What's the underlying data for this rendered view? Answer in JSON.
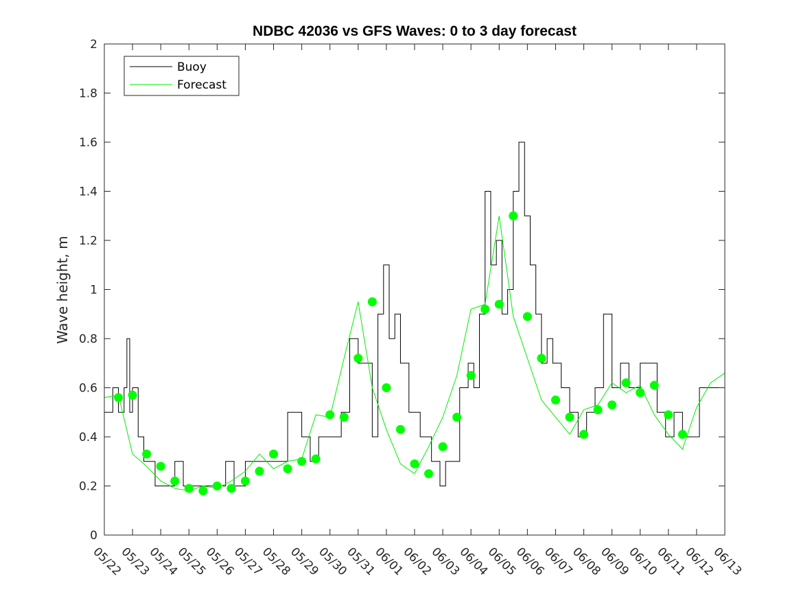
{
  "chart_data": {
    "type": "line",
    "title": "NDBC 42036 vs GFS Waves: 0 to 3 day forecast",
    "xlabel": "",
    "ylabel": "Wave height, m",
    "ylim": [
      0,
      2
    ],
    "yticks": [
      0,
      0.2,
      0.4,
      0.6,
      0.8,
      1,
      1.2,
      1.4,
      1.6,
      1.8,
      2
    ],
    "ytick_labels": [
      "0",
      "0.2",
      "0.4",
      "0.6",
      "0.8",
      "1",
      "1.2",
      "1.4",
      "1.6",
      "1.8",
      "2"
    ],
    "xlim_days": [
      0,
      22
    ],
    "xtick_labels": [
      "05/22",
      "05/23",
      "05/24",
      "05/25",
      "05/26",
      "05/27",
      "05/28",
      "05/29",
      "05/30",
      "05/31",
      "06/01",
      "06/02",
      "06/03",
      "06/04",
      "06/05",
      "06/06",
      "06/07",
      "06/08",
      "06/09",
      "06/10",
      "06/11",
      "06/12",
      "06/13"
    ],
    "grid": false,
    "legend_position": "top-left",
    "colors": {
      "buoy": "#000000",
      "forecast": "#00ee00",
      "marker": "#00ff00"
    },
    "legend": [
      {
        "label": "Buoy",
        "color": "#000000"
      },
      {
        "label": "Forecast",
        "color": "#00ee00"
      }
    ],
    "series": [
      {
        "name": "Buoy",
        "x": [
          0,
          0.3,
          0.5,
          0.7,
          0.8,
          0.9,
          1.0,
          1.2,
          1.4,
          1.6,
          1.8,
          2.0,
          2.5,
          2.8,
          3.2,
          3.6,
          4.0,
          4.3,
          4.6,
          5.0,
          5.5,
          6.0,
          6.5,
          7.0,
          7.3,
          7.6,
          8.0,
          8.4,
          8.7,
          9.0,
          9.3,
          9.5,
          9.7,
          9.9,
          10.1,
          10.3,
          10.5,
          10.8,
          11.2,
          11.6,
          11.9,
          12.1,
          12.3,
          12.6,
          12.9,
          13.1,
          13.3,
          13.5,
          13.7,
          13.9,
          14.1,
          14.3,
          14.5,
          14.7,
          14.9,
          15.1,
          15.3,
          15.5,
          15.7,
          15.9,
          16.2,
          16.5,
          16.8,
          17.1,
          17.4,
          17.7,
          18.0,
          18.3,
          18.6,
          19.0,
          19.3,
          19.6,
          19.9,
          20.2,
          20.5,
          20.8,
          21.1,
          21.4,
          21.6,
          21.8
        ],
        "values": [
          0.5,
          0.6,
          0.5,
          0.6,
          0.8,
          0.5,
          0.6,
          0.4,
          0.3,
          0.3,
          0.2,
          0.2,
          0.3,
          0.2,
          0.2,
          0.2,
          0.2,
          0.3,
          0.2,
          0.3,
          0.3,
          0.3,
          0.5,
          0.4,
          0.3,
          0.4,
          0.4,
          0.5,
          0.8,
          0.7,
          0.7,
          0.4,
          0.9,
          1.1,
          0.8,
          0.9,
          0.7,
          0.5,
          0.4,
          0.3,
          0.2,
          0.3,
          0.3,
          0.6,
          0.7,
          0.6,
          0.9,
          1.4,
          1.1,
          1.2,
          0.9,
          1.0,
          1.4,
          1.6,
          1.3,
          1.1,
          0.9,
          0.7,
          0.8,
          0.7,
          0.6,
          0.5,
          0.4,
          0.5,
          0.6,
          0.9,
          0.6,
          0.7,
          0.6,
          0.7,
          0.7,
          0.5,
          0.4,
          0.5,
          0.4,
          0.4,
          0.6,
          0.6,
          0.6,
          0.6
        ]
      },
      {
        "name": "Forecast",
        "x": [
          0,
          0.5,
          1.0,
          1.5,
          2.0,
          2.5,
          3.0,
          3.5,
          4.0,
          4.5,
          5.0,
          5.5,
          6.0,
          6.5,
          7.0,
          7.5,
          8.0,
          8.5,
          9.0,
          9.5,
          10.0,
          10.5,
          11.0,
          11.5,
          12.0,
          12.5,
          13.0,
          13.5,
          14.0,
          14.5,
          15.0,
          15.5,
          16.0,
          16.5,
          17.0,
          17.5,
          18.0,
          18.5,
          19.0,
          19.5,
          20.0,
          20.5,
          21.0,
          21.5,
          22.0
        ],
        "values": [
          0.56,
          0.57,
          0.33,
          0.28,
          0.22,
          0.19,
          0.18,
          0.2,
          0.19,
          0.22,
          0.26,
          0.33,
          0.27,
          0.3,
          0.31,
          0.49,
          0.48,
          0.72,
          0.95,
          0.6,
          0.43,
          0.29,
          0.25,
          0.36,
          0.48,
          0.65,
          0.92,
          0.94,
          1.3,
          0.89,
          0.72,
          0.55,
          0.48,
          0.41,
          0.51,
          0.53,
          0.62,
          0.58,
          0.61,
          0.49,
          0.41,
          0.35,
          0.52,
          0.62,
          0.66
        ]
      }
    ],
    "markers": {
      "name": "Forecast verification points",
      "x": [
        0.5,
        1.0,
        1.5,
        2.0,
        2.5,
        3.0,
        3.5,
        4.0,
        4.5,
        5.0,
        5.5,
        6.0,
        6.5,
        7.0,
        7.5,
        8.0,
        8.5,
        9.0,
        9.5,
        10.0,
        10.5,
        11.0,
        11.5,
        12.0,
        12.5,
        13.0,
        13.5,
        14.0,
        14.5,
        15.0,
        15.5,
        16.0,
        16.5,
        17.0,
        17.5,
        18.0,
        18.5,
        19.0,
        19.5,
        20.0,
        20.5
      ],
      "values": [
        0.56,
        0.57,
        0.33,
        0.28,
        0.22,
        0.19,
        0.18,
        0.2,
        0.19,
        0.22,
        0.26,
        0.33,
        0.27,
        0.3,
        0.31,
        0.49,
        0.48,
        0.72,
        0.95,
        0.6,
        0.43,
        0.29,
        0.25,
        0.36,
        0.48,
        0.65,
        0.92,
        0.94,
        1.3,
        0.89,
        0.72,
        0.55,
        0.48,
        0.41,
        0.51,
        0.53,
        0.62,
        0.58,
        0.61,
        0.49,
        0.41
      ]
    }
  }
}
